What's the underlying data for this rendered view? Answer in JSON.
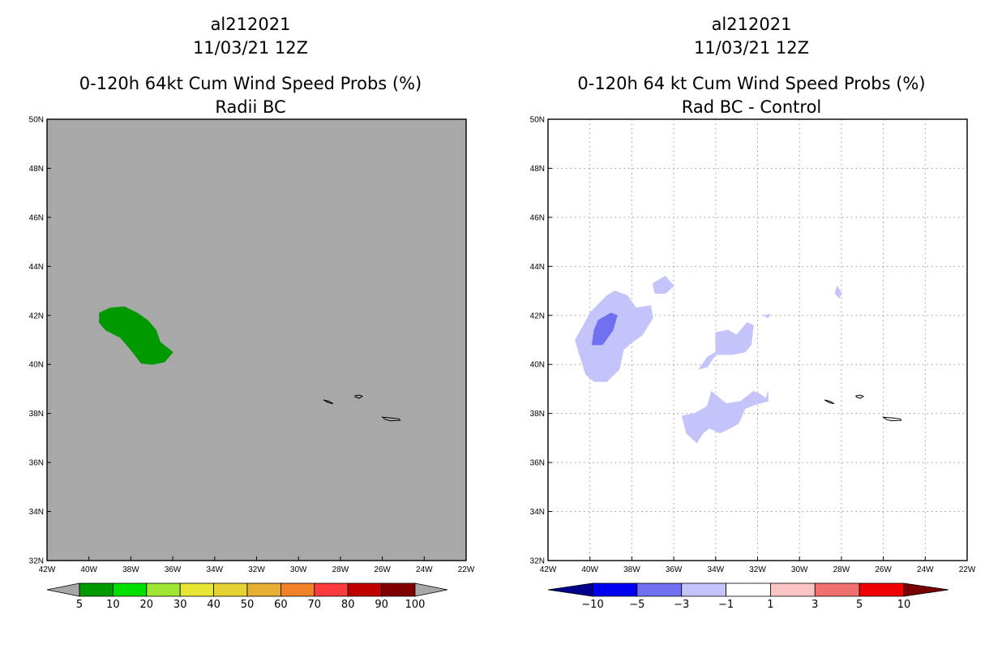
{
  "chart_data": [
    {
      "type": "filled contour map",
      "storm_id": "al212021",
      "datetime": "11/03/21 12Z",
      "title": "0-120h 64kt Cum Wind Speed Probs (%)",
      "subtitle": "Radii BC",
      "xlim": [
        -42,
        -22
      ],
      "ylim": [
        32,
        50
      ],
      "background": "#a8a8a8",
      "x_ticks": [
        "42W",
        "40W",
        "38W",
        "36W",
        "34W",
        "32W",
        "30W",
        "28W",
        "26W",
        "24W",
        "22W"
      ],
      "y_ticks": [
        "32N",
        "34N",
        "36N",
        "38N",
        "40N",
        "42N",
        "44N",
        "46N",
        "48N",
        "50N"
      ],
      "colorbar": {
        "labels": [
          "5",
          "10",
          "20",
          "30",
          "40",
          "50",
          "60",
          "70",
          "80",
          "90",
          "100"
        ],
        "colors": [
          "#009a00",
          "#00e000",
          "#a0e632",
          "#e6e632",
          "#e6d232",
          "#e6ae32",
          "#f08228",
          "#fa3c3c",
          "#c00000",
          "#7f0000",
          "#a000d8"
        ]
      },
      "regions": [
        {
          "level": "5-10",
          "color": "#009a00",
          "lonlat": [
            [
              -39.0,
              42.3
            ],
            [
              -38.3,
              42.35
            ],
            [
              -37.7,
              42.1
            ],
            [
              -37.2,
              41.8
            ],
            [
              -36.8,
              41.4
            ],
            [
              -36.6,
              40.9
            ],
            [
              -36.0,
              40.5
            ],
            [
              -36.4,
              40.1
            ],
            [
              -37.0,
              40.0
            ],
            [
              -37.5,
              40.05
            ],
            [
              -38.0,
              40.6
            ],
            [
              -38.5,
              41.1
            ],
            [
              -39.2,
              41.4
            ],
            [
              -39.5,
              41.7
            ],
            [
              -39.5,
              42.1
            ]
          ]
        }
      ],
      "islands": [
        {
          "lonlat": [
            [
              -28.8,
              38.55
            ],
            [
              -28.55,
              38.5
            ],
            [
              -28.35,
              38.4
            ],
            [
              -28.6,
              38.45
            ],
            [
              -28.8,
              38.55
            ]
          ]
        },
        {
          "lonlat": [
            [
              -27.3,
              38.72
            ],
            [
              -27.1,
              38.75
            ],
            [
              -26.95,
              38.7
            ],
            [
              -27.1,
              38.62
            ],
            [
              -27.3,
              38.68
            ]
          ]
        },
        {
          "lonlat": [
            [
              -26.0,
              37.85
            ],
            [
              -25.6,
              37.82
            ],
            [
              -25.2,
              37.78
            ],
            [
              -25.15,
              37.72
            ],
            [
              -25.6,
              37.7
            ],
            [
              -25.85,
              37.75
            ],
            [
              -26.0,
              37.85
            ]
          ]
        }
      ]
    },
    {
      "type": "filled contour map",
      "storm_id": "al212021",
      "datetime": "11/03/21 12Z",
      "title": "0-120h 64 kt Cum Wind Speed Probs (%)",
      "subtitle": "Rad BC - Control",
      "xlim": [
        -42,
        -22
      ],
      "ylim": [
        32,
        50
      ],
      "background": "#ffffff",
      "grid": true,
      "x_ticks": [
        "42W",
        "40W",
        "38W",
        "36W",
        "34W",
        "32W",
        "30W",
        "28W",
        "26W",
        "24W",
        "22W"
      ],
      "y_ticks": [
        "32N",
        "34N",
        "36N",
        "38N",
        "40N",
        "42N",
        "44N",
        "46N",
        "48N",
        "50N"
      ],
      "colorbar": {
        "labels": [
          "-10",
          "-5",
          "-3",
          "-1",
          "1",
          "3",
          "5",
          "10"
        ],
        "colors": [
          "#00008c",
          "#0000f0",
          "#7070f0",
          "#c4c4fa",
          "#ffffff",
          "#fac4c4",
          "#f07070",
          "#f00000",
          "#780000"
        ]
      },
      "regions": [
        {
          "level": "-3 to -1",
          "color": "#c4c4fa",
          "lonlat": [
            [
              -40.3,
              41.6
            ],
            [
              -40.0,
              42.1
            ],
            [
              -39.2,
              42.8
            ],
            [
              -38.8,
              43.0
            ],
            [
              -38.2,
              42.8
            ],
            [
              -37.8,
              42.3
            ],
            [
              -37.1,
              42.4
            ],
            [
              -37.0,
              41.9
            ],
            [
              -37.5,
              41.2
            ],
            [
              -38.0,
              40.9
            ],
            [
              -38.4,
              40.6
            ],
            [
              -38.6,
              39.8
            ],
            [
              -39.2,
              39.3
            ],
            [
              -39.8,
              39.3
            ],
            [
              -40.2,
              39.6
            ],
            [
              -40.5,
              40.4
            ],
            [
              -40.7,
              41.0
            ]
          ]
        },
        {
          "level": "-3 to -1",
          "color": "#c4c4fa",
          "lonlat": [
            [
              -37.0,
              43.3
            ],
            [
              -36.4,
              43.6
            ],
            [
              -36.0,
              43.2
            ],
            [
              -36.4,
              42.9
            ],
            [
              -36.9,
              42.9
            ]
          ]
        },
        {
          "level": "-3 to -1",
          "color": "#c4c4fa",
          "lonlat": [
            [
              -34.0,
              41.3
            ],
            [
              -33.4,
              41.4
            ],
            [
              -33.0,
              41.2
            ],
            [
              -32.5,
              41.7
            ],
            [
              -32.2,
              41.6
            ],
            [
              -32.3,
              40.8
            ],
            [
              -32.6,
              40.5
            ],
            [
              -33.2,
              40.4
            ],
            [
              -34.0,
              40.4
            ],
            [
              -34.4,
              39.9
            ],
            [
              -34.8,
              39.8
            ],
            [
              -34.4,
              40.3
            ],
            [
              -34.0,
              40.5
            ]
          ]
        },
        {
          "level": "-3 to -1",
          "color": "#c4c4fa",
          "lonlat": [
            [
              -34.2,
              38.9
            ],
            [
              -33.5,
              38.4
            ],
            [
              -32.8,
              38.5
            ],
            [
              -32.2,
              38.9
            ],
            [
              -31.9,
              38.8
            ],
            [
              -31.6,
              38.6
            ],
            [
              -31.5,
              38.9
            ],
            [
              -31.5,
              38.5
            ],
            [
              -32.0,
              38.4
            ],
            [
              -32.6,
              38.2
            ],
            [
              -32.9,
              37.6
            ],
            [
              -33.3,
              37.4
            ],
            [
              -33.8,
              37.2
            ],
            [
              -34.3,
              37.4
            ],
            [
              -34.6,
              37.2
            ],
            [
              -34.9,
              36.8
            ],
            [
              -35.4,
              37.2
            ],
            [
              -35.6,
              37.9
            ],
            [
              -35.0,
              38.0
            ],
            [
              -34.4,
              38.3
            ]
          ]
        },
        {
          "level": "-3 to -1",
          "color": "#c4c4fa",
          "lonlat": [
            [
              -28.2,
              43.2
            ],
            [
              -28.0,
              42.9
            ],
            [
              -28.1,
              42.7
            ],
            [
              -28.3,
              42.9
            ]
          ]
        },
        {
          "level": "-3 to -1",
          "color": "#c4c4fa",
          "lonlat": [
            [
              -31.7,
              42.0
            ],
            [
              -31.4,
              42.05
            ],
            [
              -31.5,
              41.9
            ]
          ]
        },
        {
          "level": "-5 to -3",
          "color": "#7070f0",
          "lonlat": [
            [
              -39.6,
              41.8
            ],
            [
              -39.0,
              42.1
            ],
            [
              -38.7,
              42.0
            ],
            [
              -38.9,
              41.4
            ],
            [
              -39.4,
              40.8
            ],
            [
              -39.9,
              40.8
            ],
            [
              -39.8,
              41.4
            ]
          ]
        }
      ],
      "islands": [
        {
          "lonlat": [
            [
              -28.8,
              38.55
            ],
            [
              -28.55,
              38.5
            ],
            [
              -28.35,
              38.4
            ],
            [
              -28.6,
              38.45
            ],
            [
              -28.8,
              38.55
            ]
          ]
        },
        {
          "lonlat": [
            [
              -27.3,
              38.72
            ],
            [
              -27.1,
              38.75
            ],
            [
              -26.95,
              38.7
            ],
            [
              -27.1,
              38.62
            ],
            [
              -27.3,
              38.68
            ]
          ]
        },
        {
          "lonlat": [
            [
              -26.0,
              37.85
            ],
            [
              -25.6,
              37.82
            ],
            [
              -25.2,
              37.78
            ],
            [
              -25.15,
              37.72
            ],
            [
              -25.6,
              37.7
            ],
            [
              -25.85,
              37.75
            ],
            [
              -26.0,
              37.85
            ]
          ]
        }
      ]
    }
  ]
}
